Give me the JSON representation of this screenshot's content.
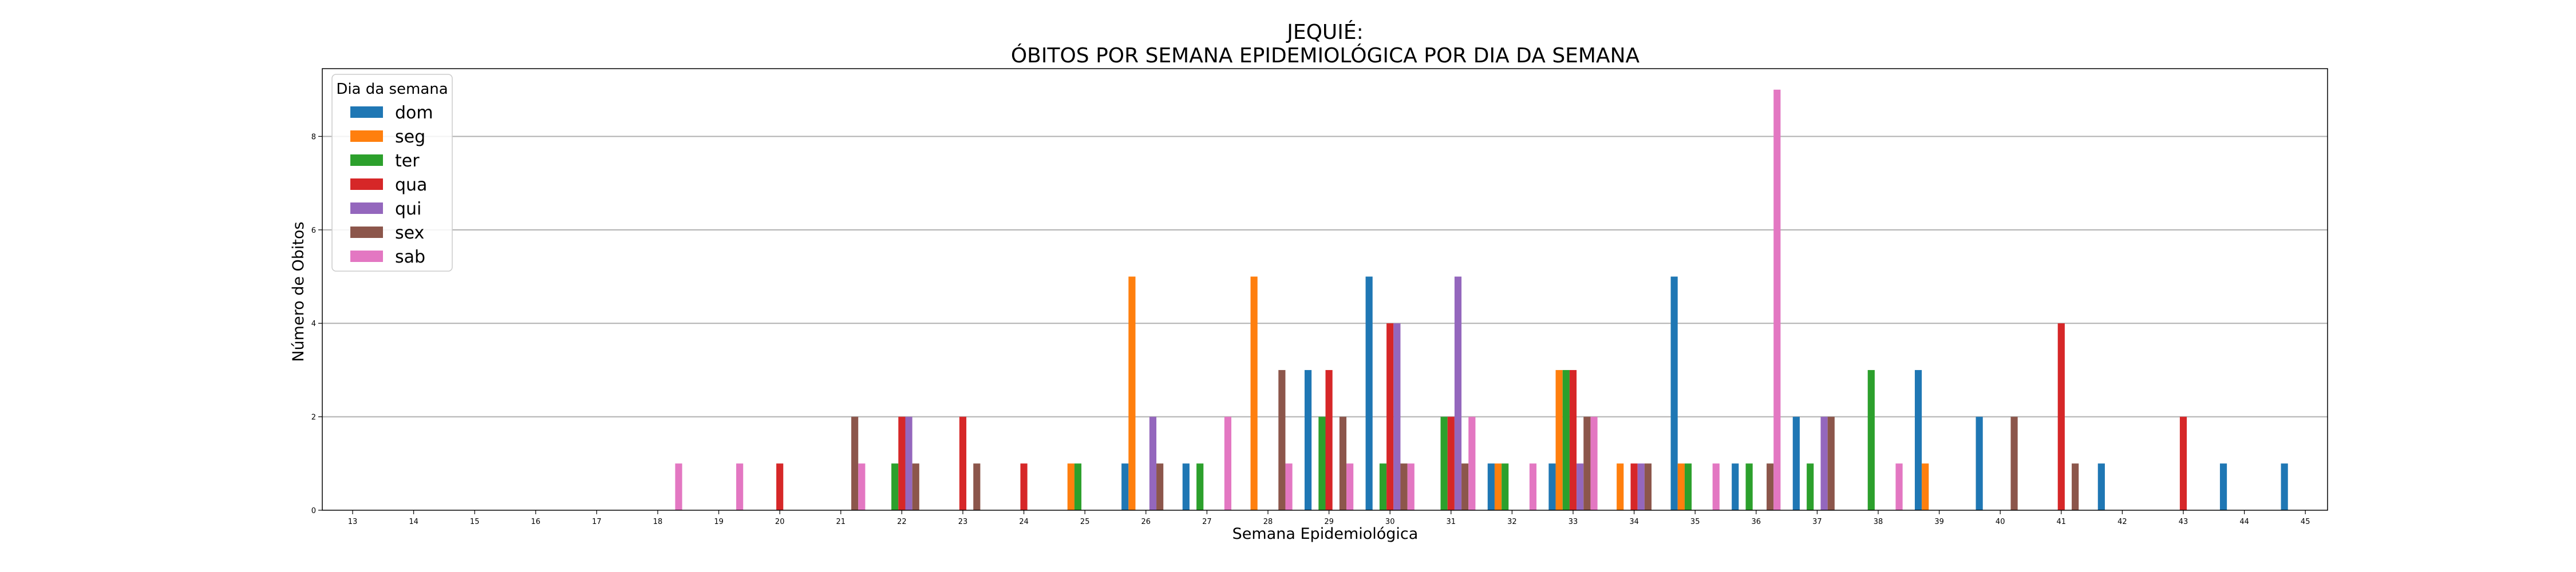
{
  "chart_data": {
    "type": "bar",
    "title_line1": "JEQUIÉ:",
    "title_line2": "ÓBITOS POR SEMANA EPIDEMIOLÓGICA POR DIA DA SEMANA",
    "xlabel": "Semana Epidemiológica",
    "ylabel": "Número de Obitos",
    "ylim": [
      0,
      9.45
    ],
    "y_ticks": [
      0,
      2,
      4,
      6,
      8
    ],
    "grid": "horizontal",
    "legend_title": "Dia da semana",
    "legend_position": "top-left",
    "categories": [
      "13",
      "14",
      "15",
      "16",
      "17",
      "18",
      "19",
      "20",
      "21",
      "22",
      "23",
      "24",
      "25",
      "26",
      "27",
      "28",
      "29",
      "30",
      "31",
      "32",
      "33",
      "34",
      "35",
      "36",
      "37",
      "38",
      "39",
      "40",
      "41",
      "42",
      "43",
      "44",
      "45"
    ],
    "series": [
      {
        "name": "dom",
        "color": "#1f77b4",
        "values": [
          0,
          0,
          0,
          0,
          0,
          0,
          0,
          0,
          0,
          0,
          0,
          0,
          0,
          1,
          1,
          0,
          3,
          5,
          0,
          1,
          1,
          0,
          5,
          1,
          2,
          0,
          3,
          2,
          0,
          1,
          0,
          1,
          1
        ]
      },
      {
        "name": "seg",
        "color": "#ff7f0e",
        "values": [
          0,
          0,
          0,
          0,
          0,
          0,
          0,
          0,
          0,
          0,
          0,
          0,
          1,
          5,
          0,
          5,
          0,
          0,
          0,
          1,
          3,
          1,
          1,
          0,
          0,
          0,
          1,
          0,
          0,
          0,
          0,
          0,
          0
        ]
      },
      {
        "name": "ter",
        "color": "#2ca02c",
        "values": [
          0,
          0,
          0,
          0,
          0,
          0,
          0,
          0,
          0,
          1,
          0,
          0,
          1,
          0,
          1,
          0,
          2,
          1,
          2,
          1,
          3,
          0,
          1,
          1,
          1,
          3,
          0,
          0,
          0,
          0,
          0,
          0,
          0
        ]
      },
      {
        "name": "qua",
        "color": "#d62728",
        "values": [
          0,
          0,
          0,
          0,
          0,
          0,
          0,
          1,
          0,
          2,
          2,
          1,
          0,
          0,
          0,
          0,
          3,
          4,
          2,
          0,
          3,
          1,
          0,
          0,
          0,
          0,
          0,
          0,
          4,
          0,
          2,
          0,
          0
        ]
      },
      {
        "name": "qui",
        "color": "#9467bd",
        "values": [
          0,
          0,
          0,
          0,
          0,
          0,
          0,
          0,
          0,
          2,
          0,
          0,
          0,
          2,
          0,
          0,
          0,
          4,
          5,
          0,
          1,
          1,
          0,
          0,
          2,
          0,
          0,
          0,
          0,
          0,
          0,
          0,
          0
        ]
      },
      {
        "name": "sex",
        "color": "#8c564b",
        "values": [
          0,
          0,
          0,
          0,
          0,
          0,
          0,
          0,
          2,
          1,
          1,
          0,
          0,
          1,
          0,
          3,
          2,
          1,
          1,
          0,
          2,
          1,
          0,
          1,
          2,
          0,
          0,
          2,
          1,
          0,
          0,
          0,
          0
        ]
      },
      {
        "name": "sab",
        "color": "#e377c2",
        "values": [
          0,
          0,
          0,
          0,
          0,
          1,
          1,
          0,
          1,
          0,
          0,
          0,
          0,
          0,
          2,
          1,
          1,
          1,
          2,
          1,
          2,
          0,
          1,
          9,
          0,
          1,
          0,
          0,
          0,
          0,
          0,
          0,
          0
        ]
      }
    ]
  }
}
